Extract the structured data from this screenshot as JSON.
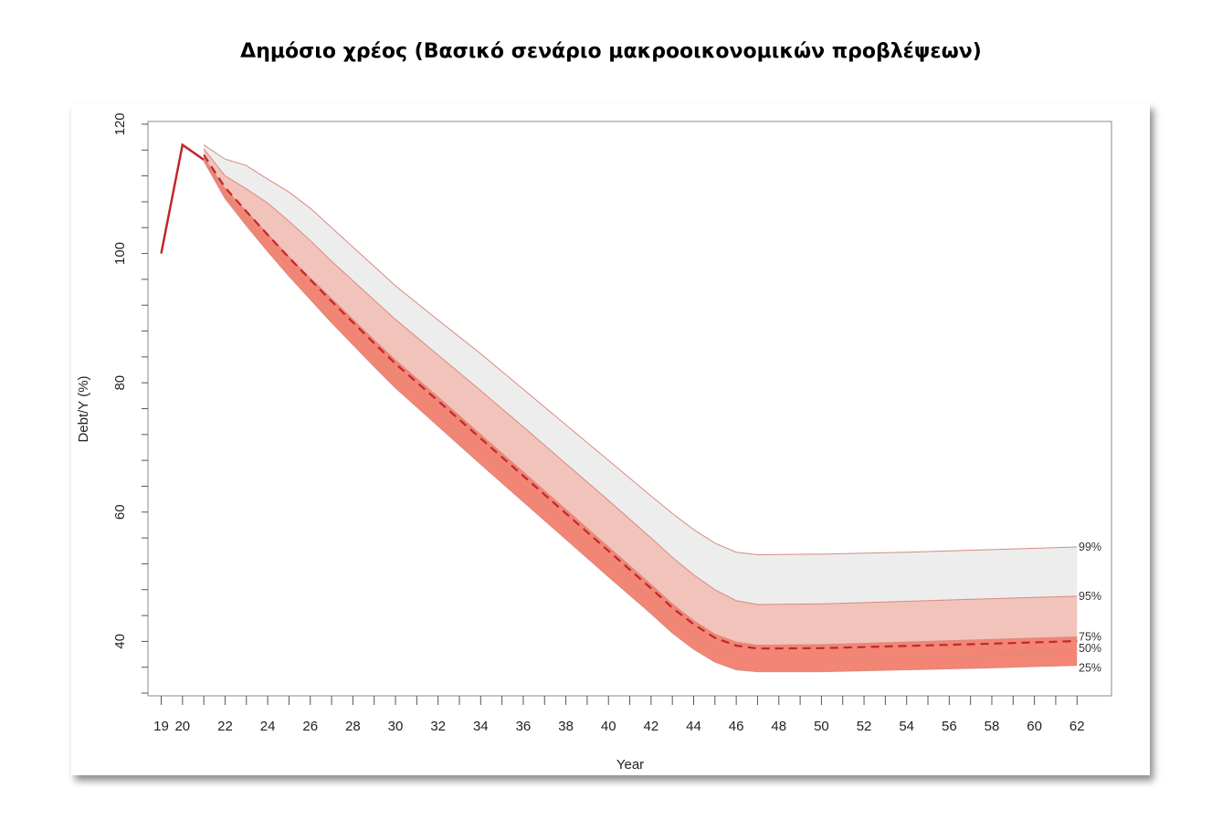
{
  "title": "Δημόσιο χρέος (Βασικό σενάριο μακροοικονομικών προβλέψεων)",
  "chart_data": {
    "type": "area",
    "xlabel": "Year",
    "ylabel": "Debt/Y (%)",
    "xlim": [
      19,
      62
    ],
    "ylim": [
      32,
      120
    ],
    "yticks": [
      40,
      60,
      80,
      100,
      120
    ],
    "xticks": [
      "19",
      "20",
      "22",
      "24",
      "26",
      "28",
      "30",
      "32",
      "34",
      "36",
      "38",
      "40",
      "42",
      "44",
      "46",
      "48",
      "50",
      "52",
      "54",
      "56",
      "58",
      "60",
      "62"
    ],
    "grid": false,
    "colors": {
      "history_line": "#c0282d",
      "median_line": "#c0282d",
      "band_99_95": "#ededed",
      "band_95_75": "#f2c3bb",
      "band_75_25": "#f38574",
      "band_edge": "#d98a7f"
    },
    "history": {
      "x": [
        19,
        20,
        21
      ],
      "y": [
        100,
        116.8,
        114.5
      ]
    },
    "x": [
      21,
      22,
      23,
      24,
      25,
      26,
      27,
      28,
      29,
      30,
      32,
      34,
      36,
      38,
      40,
      42,
      43,
      44,
      45,
      46,
      47,
      50,
      54,
      58,
      62
    ],
    "series": [
      {
        "name": "99%",
        "values": [
          116.8,
          114.6,
          113.6,
          111.5,
          109.5,
          107,
          104,
          101,
          98,
          95,
          89.7,
          84.5,
          79,
          73.5,
          68,
          62.5,
          59.8,
          57.3,
          55.2,
          53.8,
          53.4,
          53.5,
          53.8,
          54.2,
          54.6
        ]
      },
      {
        "name": "95%",
        "values": [
          116.2,
          112,
          110,
          107.8,
          105,
          102,
          98.8,
          95.8,
          92.8,
          89.8,
          84.3,
          78.8,
          73.2,
          67.5,
          61.8,
          56,
          53,
          50.3,
          48,
          46.3,
          45.7,
          45.8,
          46.2,
          46.6,
          47
        ]
      },
      {
        "name": "75%",
        "values": [
          114.8,
          110,
          106.5,
          103,
          99.5,
          96.2,
          93,
          89.8,
          86.6,
          83.5,
          77.8,
          72,
          66.2,
          60.4,
          54.6,
          48.8,
          45.8,
          43.2,
          41.1,
          39.9,
          39.4,
          39.5,
          39.9,
          40.3,
          40.7
        ]
      },
      {
        "name": "50%",
        "values": [
          114.5,
          109.2,
          105.3,
          101.6,
          98,
          94.5,
          91,
          87.7,
          84.4,
          81.2,
          75.4,
          69.6,
          63.8,
          58,
          52.2,
          46.4,
          43.4,
          40.9,
          38.8,
          37.6,
          37.2,
          37.2,
          37.5,
          37.8,
          38.2
        ]
      },
      {
        "name": "25%",
        "values": [
          114.3,
          108.5,
          104.3,
          100.3,
          96.5,
          92.9,
          89.3,
          85.9,
          82.5,
          79.2,
          73.3,
          67.4,
          61.6,
          55.8,
          50,
          44.3,
          41.3,
          38.8,
          36.8,
          35.6,
          35.3,
          35.3,
          35.6,
          35.9,
          36.3
        ]
      }
    ],
    "band_labels": [
      "99%",
      "95%",
      "75%",
      "50%",
      "25%"
    ]
  }
}
